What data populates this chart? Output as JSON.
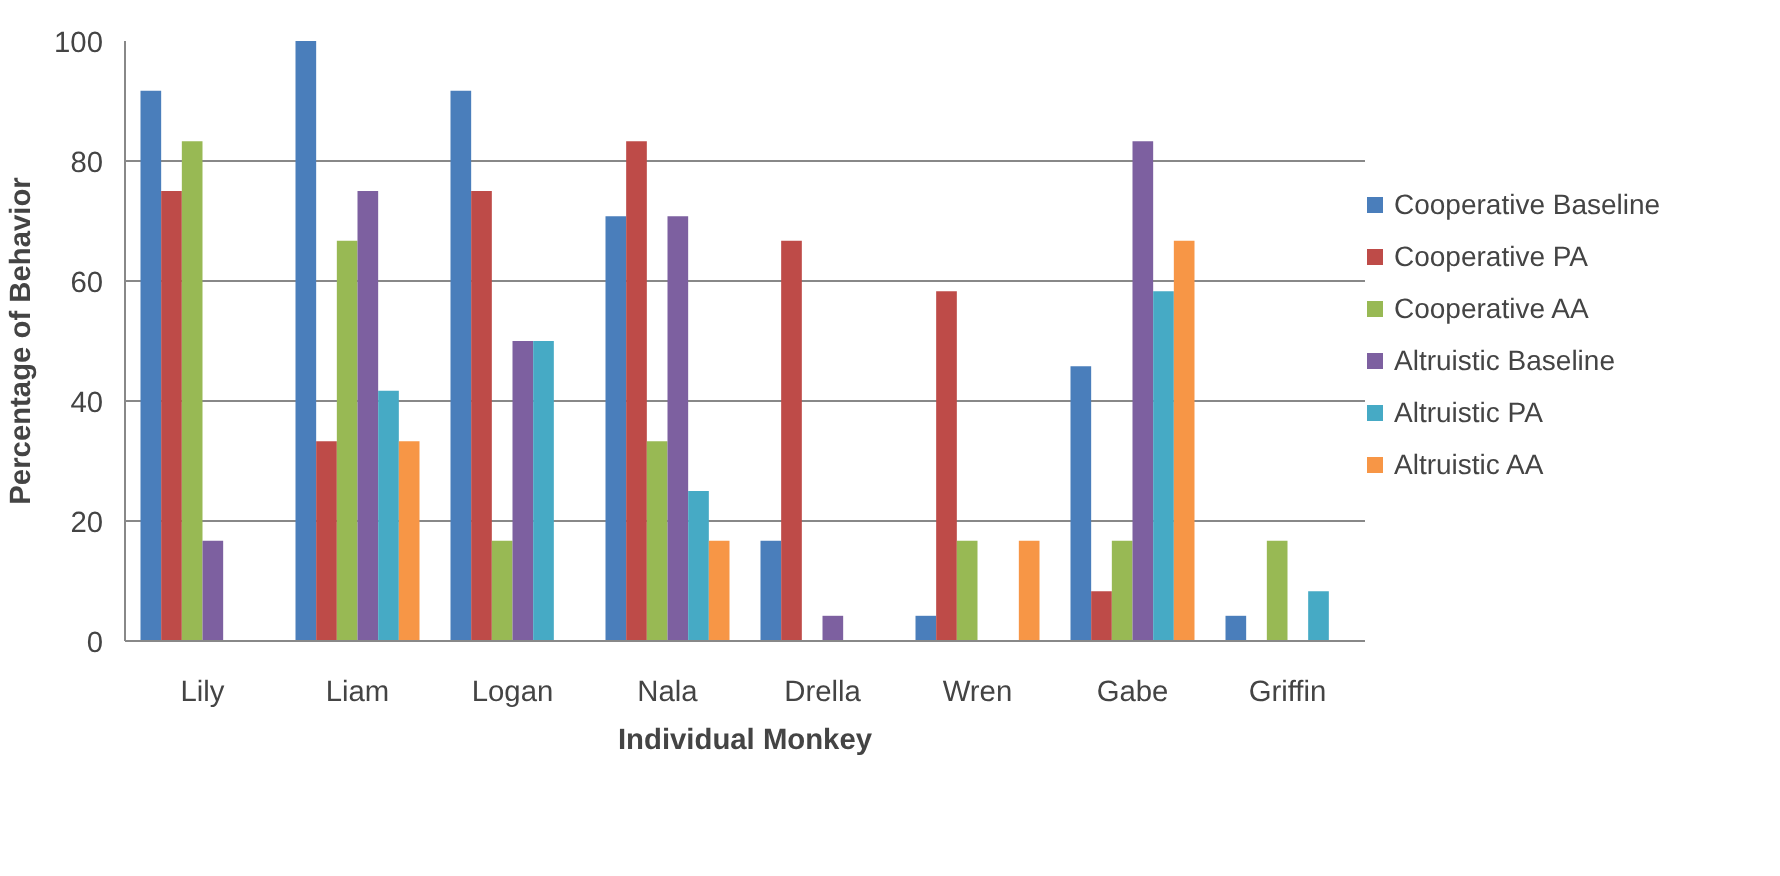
{
  "chart_data": {
    "type": "bar",
    "xlabel": "Individual Monkey",
    "ylabel": "Percentage of Behavior",
    "categories": [
      "Lily",
      "Liam",
      "Logan",
      "Nala",
      "Drella",
      "Wren",
      "Gabe",
      "Griffin"
    ],
    "series": [
      {
        "name": "Cooperative Baseline",
        "color": "#4a7ebb",
        "values": [
          91.7,
          100,
          91.7,
          70.8,
          16.7,
          4.2,
          45.8,
          4.2
        ]
      },
      {
        "name": "Cooperative PA",
        "color": "#be4b48",
        "values": [
          75,
          33.3,
          75,
          83.3,
          66.7,
          58.3,
          8.3,
          0
        ]
      },
      {
        "name": "Cooperative AA",
        "color": "#98b954",
        "values": [
          83.3,
          66.7,
          16.7,
          33.3,
          0,
          16.7,
          16.7,
          16.7
        ]
      },
      {
        "name": "Altruistic Baseline",
        "color": "#7d60a0",
        "values": [
          16.7,
          75,
          50,
          70.8,
          4.2,
          0,
          83.3,
          0
        ]
      },
      {
        "name": "Altruistic PA",
        "color": "#46aac5",
        "values": [
          0,
          41.7,
          50,
          25,
          0,
          0,
          58.3,
          8.3
        ]
      },
      {
        "name": "Altruistic AA",
        "color": "#f79646",
        "values": [
          0,
          33.3,
          0,
          16.7,
          0,
          16.7,
          66.7,
          0
        ]
      }
    ],
    "ylim": [
      0,
      100
    ],
    "yticks": [
      0,
      20,
      40,
      60,
      80,
      100
    ],
    "grid": "y",
    "legend": "right"
  }
}
